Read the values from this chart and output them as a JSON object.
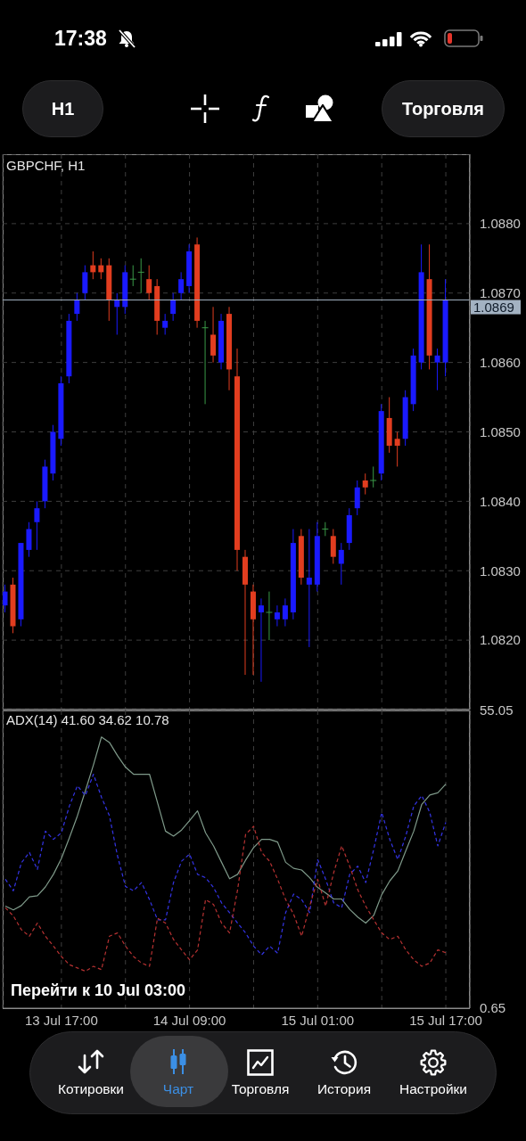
{
  "chart_data": [
    {
      "type": "other",
      "annotations": [
        "17:38",
        "H1",
        "Торговля"
      ]
    },
    {
      "type": "candlestick",
      "title": "GBPCHF, H1",
      "x": [
        "--07-13T10:00",
        "--07-13T11:00",
        "--07-13T12:00",
        "--07-13T13:00",
        "--07-13T14:00",
        "--07-13T15:00",
        "--07-13T16:00",
        "--07-13T17:00",
        "--07-13T18:00",
        "--07-13T19:00",
        "--07-13T20:00",
        "--07-13T21:00",
        "--07-13T22:00",
        "--07-13T23:00",
        "--07-14T00:00",
        "--07-14T01:00",
        "--07-14T02:00",
        "--07-14T03:00",
        "--07-14T04:00",
        "--07-14T05:00",
        "--07-14T06:00",
        "--07-14T07:00",
        "--07-14T08:00",
        "--07-14T09:00",
        "--07-14T10:00",
        "--07-14T11:00",
        "--07-14T12:00",
        "--07-14T13:00",
        "--07-14T14:00",
        "--07-14T15:00",
        "--07-14T16:00",
        "--07-14T17:00",
        "--07-14T18:00",
        "--07-14T19:00",
        "--07-14T20:00",
        "--07-14T21:00",
        "--07-14T22:00",
        "--07-14T23:00",
        "--07-15T00:00",
        "--07-15T01:00",
        "--07-15T02:00",
        "--07-15T03:00",
        "--07-15T04:00",
        "--07-15T05:00",
        "--07-15T06:00",
        "--07-15T07:00",
        "--07-15T08:00",
        "--07-15T09:00",
        "--07-15T10:00",
        "--07-15T11:00",
        "--07-15T12:00",
        "--07-15T13:00",
        "--07-15T14:00",
        "--07-15T15:00",
        "--07-15T16:00",
        "--07-15T17:00"
      ],
      "ohlc": [
        [
          1.0825,
          1.0828,
          1.0824,
          1.0827
        ],
        [
          1.0828,
          1.0829,
          1.0821,
          1.0822
        ],
        [
          1.0823,
          1.0834,
          1.0822,
          1.0834
        ],
        [
          1.0833,
          1.0837,
          1.0832,
          1.0836
        ],
        [
          1.0837,
          1.084,
          1.0833,
          1.0839
        ],
        [
          1.084,
          1.0846,
          1.0839,
          1.0845
        ],
        [
          1.0844,
          1.0851,
          1.0843,
          1.085
        ],
        [
          1.0849,
          1.0858,
          1.0848,
          1.0857
        ],
        [
          1.0858,
          1.0867,
          1.0857,
          1.0866
        ],
        [
          1.0867,
          1.087,
          1.0866,
          1.0869
        ],
        [
          1.087,
          1.0874,
          1.0869,
          1.0873
        ],
        [
          1.0874,
          1.0876,
          1.0872,
          1.0873
        ],
        [
          1.0874,
          1.0875,
          1.0872,
          1.0873
        ],
        [
          1.0874,
          1.0875,
          1.0866,
          1.0869
        ],
        [
          1.0868,
          1.087,
          1.0864,
          1.0869
        ],
        [
          1.0868,
          1.0874,
          1.0867,
          1.0873
        ],
        [
          1.0872,
          1.0874,
          1.0871,
          1.0872
        ],
        [
          1.0873,
          1.0875,
          1.087,
          1.0873
        ],
        [
          1.0872,
          1.0874,
          1.0869,
          1.087
        ],
        [
          1.0871,
          1.0872,
          1.0864,
          1.0866
        ],
        [
          1.0865,
          1.0867,
          1.0864,
          1.0866
        ],
        [
          1.0867,
          1.087,
          1.0866,
          1.0869
        ],
        [
          1.087,
          1.0873,
          1.0869,
          1.0872
        ],
        [
          1.0871,
          1.0877,
          1.087,
          1.0876
        ],
        [
          1.0877,
          1.0878,
          1.0865,
          1.0866
        ],
        [
          1.0865,
          1.0866,
          1.0854,
          1.0865
        ],
        [
          1.0864,
          1.0868,
          1.086,
          1.0861
        ],
        [
          1.086,
          1.0867,
          1.0859,
          1.0866
        ],
        [
          1.0867,
          1.0868,
          1.0856,
          1.0859
        ],
        [
          1.0858,
          1.0862,
          1.083,
          1.0833
        ],
        [
          1.0832,
          1.0833,
          1.0815,
          1.0828
        ],
        [
          1.0827,
          1.0828,
          1.0815,
          1.0823
        ],
        [
          1.0824,
          1.0826,
          1.0814,
          1.0825
        ],
        [
          1.0824,
          1.0827,
          1.082,
          1.0824
        ],
        [
          1.0823,
          1.0825,
          1.0822,
          1.0824
        ],
        [
          1.0823,
          1.0826,
          1.0822,
          1.0825
        ],
        [
          1.0824,
          1.0836,
          1.0823,
          1.0834
        ],
        [
          1.0835,
          1.0836,
          1.0828,
          1.0829
        ],
        [
          1.0828,
          1.0836,
          1.0819,
          1.0829
        ],
        [
          1.0828,
          1.0837,
          1.0827,
          1.0835
        ],
        [
          1.0836,
          1.0837,
          1.0835,
          1.0836
        ],
        [
          1.0835,
          1.0836,
          1.0831,
          1.0832
        ],
        [
          1.0831,
          1.0834,
          1.0828,
          1.0833
        ],
        [
          1.0834,
          1.0839,
          1.0833,
          1.0838
        ],
        [
          1.0839,
          1.0843,
          1.0838,
          1.0842
        ],
        [
          1.0843,
          1.0844,
          1.0841,
          1.0842
        ],
        [
          1.0843,
          1.0845,
          1.0842,
          1.0843
        ],
        [
          1.0844,
          1.0854,
          1.0843,
          1.0853
        ],
        [
          1.0852,
          1.0855,
          1.0847,
          1.0848
        ],
        [
          1.0849,
          1.085,
          1.0845,
          1.0848
        ],
        [
          1.0849,
          1.0856,
          1.0848,
          1.0855
        ],
        [
          1.0854,
          1.0862,
          1.0853,
          1.0861
        ],
        [
          1.086,
          1.0877,
          1.0859,
          1.0873
        ],
        [
          1.0872,
          1.0877,
          1.0859,
          1.0861
        ],
        [
          1.086,
          1.0862,
          1.0856,
          1.0861
        ],
        [
          1.086,
          1.0872,
          1.0858,
          1.0869
        ]
      ],
      "colors": [
        "#1a1aff",
        "#e23d1f",
        "#1a1aff",
        "#1a1aff",
        "#1a1aff",
        "#1a1aff",
        "#1a1aff",
        "#1a1aff",
        "#1a1aff",
        "#1a1aff",
        "#1a1aff",
        "#e23d1f",
        "#e23d1f",
        "#e23d1f",
        "#1a1aff",
        "#1a1aff",
        "#3a9a48",
        "#3a9a48",
        "#e23d1f",
        "#e23d1f",
        "#1a1aff",
        "#1a1aff",
        "#1a1aff",
        "#1a1aff",
        "#e23d1f",
        "#3a9a48",
        "#e23d1f",
        "#1a1aff",
        "#e23d1f",
        "#e23d1f",
        "#e23d1f",
        "#e23d1f",
        "#1a1aff",
        "#3a9a48",
        "#1a1aff",
        "#1a1aff",
        "#1a1aff",
        "#e23d1f",
        "#1a1aff",
        "#1a1aff",
        "#3a9a48",
        "#e23d1f",
        "#1a1aff",
        "#1a1aff",
        "#1a1aff",
        "#e23d1f",
        "#3a9a48",
        "#1a1aff",
        "#e23d1f",
        "#e23d1f",
        "#1a1aff",
        "#1a1aff",
        "#1a1aff",
        "#e23d1f",
        "#1a1aff",
        "#1a1aff"
      ],
      "xlim": [
        "--07-13T09:40",
        "--07-15T20:00"
      ],
      "xticks": [
        {
          "value": "--07-13T17:00",
          "label": "13 Jul 17:00"
        },
        {
          "value": "--07-14T01:00",
          "label": null
        },
        {
          "value": "--07-14T09:00",
          "label": "14 Jul 09:00"
        },
        {
          "value": "--07-14T17:00",
          "label": null
        },
        {
          "value": "--07-15T01:00",
          "label": "15 Jul 01:00"
        },
        {
          "value": "--07-15T09:00",
          "label": null
        },
        {
          "value": "--07-15T17:00",
          "label": "15 Jul 17:00"
        }
      ],
      "ylim": [
        1.081,
        1.089
      ],
      "yticks": [
        {
          "value": 1.082,
          "label": "1.0820"
        },
        {
          "value": 1.083,
          "label": "1.0830"
        },
        {
          "value": 1.084,
          "label": "1.0840"
        },
        {
          "value": 1.085,
          "label": "1.0850"
        },
        {
          "value": 1.086,
          "label": "1.0860"
        },
        {
          "value": 1.087,
          "label": "1.0870"
        },
        {
          "value": 1.088,
          "label": "1.0880"
        }
      ],
      "grid": true,
      "tick_labels": "y",
      "ref_lines": [
        {
          "axis": "y",
          "value": 1.0869,
          "label": "1.0869",
          "color": "#a3b2c2"
        }
      ]
    },
    {
      "type": "line",
      "title": "ADX(14) 41.60 34.62 10.78",
      "x": [
        "--07-13T10:00",
        "--07-13T11:00",
        "--07-13T12:00",
        "--07-13T13:00",
        "--07-13T14:00",
        "--07-13T15:00",
        "--07-13T16:00",
        "--07-13T17:00",
        "--07-13T18:00",
        "--07-13T19:00",
        "--07-13T20:00",
        "--07-13T21:00",
        "--07-13T22:00",
        "--07-13T23:00",
        "--07-14T00:00",
        "--07-14T01:00",
        "--07-14T02:00",
        "--07-14T03:00",
        "--07-14T04:00",
        "--07-14T05:00",
        "--07-14T06:00",
        "--07-14T07:00",
        "--07-14T08:00",
        "--07-14T09:00",
        "--07-14T10:00",
        "--07-14T11:00",
        "--07-14T12:00",
        "--07-14T13:00",
        "--07-14T14:00",
        "--07-14T15:00",
        "--07-14T16:00",
        "--07-14T17:00",
        "--07-14T18:00",
        "--07-14T19:00",
        "--07-14T20:00",
        "--07-14T21:00",
        "--07-14T22:00",
        "--07-14T23:00",
        "--07-15T00:00",
        "--07-15T01:00",
        "--07-15T02:00",
        "--07-15T03:00",
        "--07-15T04:00",
        "--07-15T05:00",
        "--07-15T06:00",
        "--07-15T07:00",
        "--07-15T08:00",
        "--07-15T09:00",
        "--07-15T10:00",
        "--07-15T11:00",
        "--07-15T12:00",
        "--07-15T13:00",
        "--07-15T14:00",
        "--07-15T15:00",
        "--07-15T16:00",
        "--07-15T17:00"
      ],
      "series": [
        {
          "color": "#7f9a8a",
          "values": [
            19.3,
            18.6,
            19.4,
            21.0,
            21.2,
            22.8,
            25.1,
            28.0,
            31.8,
            35.8,
            40.4,
            45.1,
            50.2,
            49.2,
            46.8,
            44.7,
            43.4,
            43.4,
            43.4,
            38.2,
            33.0,
            32.1,
            33.2,
            34.9,
            36.7,
            32.7,
            30.3,
            27.3,
            24.3,
            25.1,
            27.7,
            30.0,
            31.5,
            31.5,
            31.0,
            27.3,
            26.2,
            25.9,
            24.5,
            22.7,
            21.7,
            20.6,
            20.6,
            18.7,
            17.3,
            16.2,
            17.6,
            21.4,
            23.9,
            25.7,
            29.4,
            33.0,
            37.9,
            39.6,
            40.0,
            41.6
          ]
        },
        {
          "color": "#3434e6",
          "line_style": "dashed",
          "values": [
            24.2,
            22.1,
            27.2,
            29.1,
            26.0,
            33.0,
            31.5,
            32.7,
            37.6,
            41.3,
            39.5,
            43.4,
            39.2,
            35.8,
            28.5,
            22.9,
            22.1,
            23.6,
            20.5,
            16.8,
            16.8,
            23.6,
            27.5,
            28.8,
            25.1,
            24.5,
            22.7,
            19.9,
            18.1,
            16.2,
            14.4,
            12.0,
            10.4,
            12.0,
            10.7,
            18.1,
            21.5,
            20.5,
            18.1,
            27.8,
            24.2,
            19.9,
            19.0,
            25.1,
            26.6,
            23.6,
            29.7,
            36.4,
            31.5,
            27.8,
            32.1,
            37.6,
            39.5,
            36.4,
            30.3,
            34.62
          ]
        },
        {
          "color": "#b83232",
          "line_style": "dashed",
          "values": [
            19.0,
            17.5,
            15.0,
            13.8,
            16.2,
            13.8,
            12.0,
            10.1,
            8.6,
            8.0,
            7.4,
            8.3,
            7.7,
            13.8,
            14.4,
            12.0,
            10.1,
            8.9,
            8.3,
            17.1,
            16.2,
            13.2,
            11.3,
            9.5,
            11.3,
            20.5,
            19.6,
            16.2,
            14.4,
            22.3,
            32.4,
            33.9,
            29.1,
            27.5,
            24.2,
            20.5,
            17.8,
            13.8,
            19.3,
            24.2,
            19.3,
            25.4,
            30.3,
            26.6,
            22.3,
            19.3,
            16.8,
            14.4,
            13.2,
            13.8,
            11.3,
            9.5,
            8.3,
            8.9,
            11.3,
            10.78
          ]
        }
      ],
      "line_style": "solid",
      "marker": "none",
      "xlim": [
        "--07-13T09:40",
        "--07-15T20:00"
      ],
      "xticks": [
        {
          "value": "--07-13T17:00",
          "label": "13 Jul 17:00"
        },
        {
          "value": "--07-14T01:00",
          "label": null
        },
        {
          "value": "--07-14T09:00",
          "label": "14 Jul 09:00"
        },
        {
          "value": "--07-14T17:00",
          "label": null
        },
        {
          "value": "--07-15T01:00",
          "label": "15 Jul 01:00"
        },
        {
          "value": "--07-15T09:00",
          "label": null
        },
        {
          "value": "--07-15T17:00",
          "label": "15 Jul 17:00"
        }
      ],
      "ylim": [
        0.65,
        55.05
      ],
      "yticks": [
        0.65,
        55.05
      ],
      "grid": "x",
      "annotations": [
        "Перейти к 10 Jul 03:00"
      ]
    },
    {
      "type": "other",
      "annotations": [
        "Котировки",
        "Чарт",
        "Торговля",
        "История",
        "Настройки"
      ]
    }
  ]
}
